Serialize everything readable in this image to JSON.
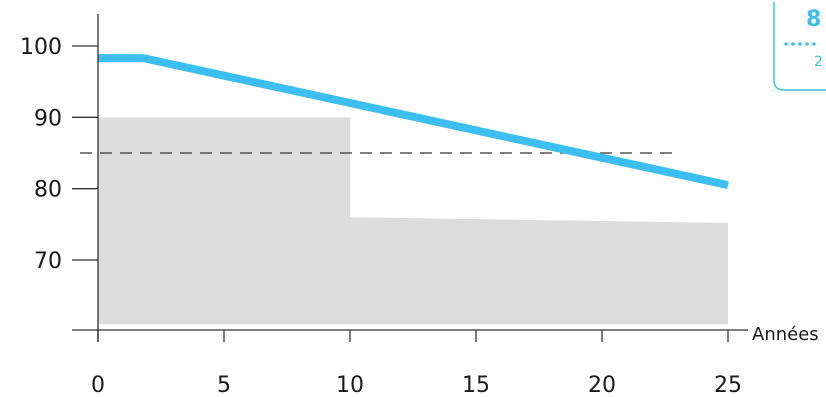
{
  "chart_data": {
    "type": "line",
    "title": "",
    "xlabel": "Années",
    "ylabel": "",
    "xlim": [
      0,
      25
    ],
    "ylim": [
      61,
      103
    ],
    "x_ticks": [
      0,
      5,
      10,
      15,
      20,
      25
    ],
    "x_tick_labels": [
      "0",
      "5",
      "10",
      "15",
      "20",
      "25"
    ],
    "y_ticks": [
      70,
      80,
      90,
      100
    ],
    "y_tick_labels": [
      "70",
      "80",
      "90",
      "100"
    ],
    "grid": false,
    "series": [
      {
        "kind": "line",
        "color": "#3cbff0",
        "x": [
          0,
          1.8,
          25
        ],
        "y": [
          98.3,
          98.3,
          80.5
        ]
      }
    ],
    "area": {
      "kind": "area",
      "color": "#dcdcdd",
      "x": [
        0,
        10,
        10,
        25
      ],
      "y": [
        90,
        90,
        76,
        75.2
      ],
      "baseline": 61
    },
    "reference_line": {
      "kind": "dashed",
      "color": "#333333",
      "y": 85,
      "x_start": 0,
      "x_end": 23
    }
  },
  "badge": {
    "value": "8",
    "sub": "2"
  },
  "colors": {
    "accent": "#3cbff0",
    "area_fill": "#dcdcdd",
    "axis": "#333333"
  }
}
